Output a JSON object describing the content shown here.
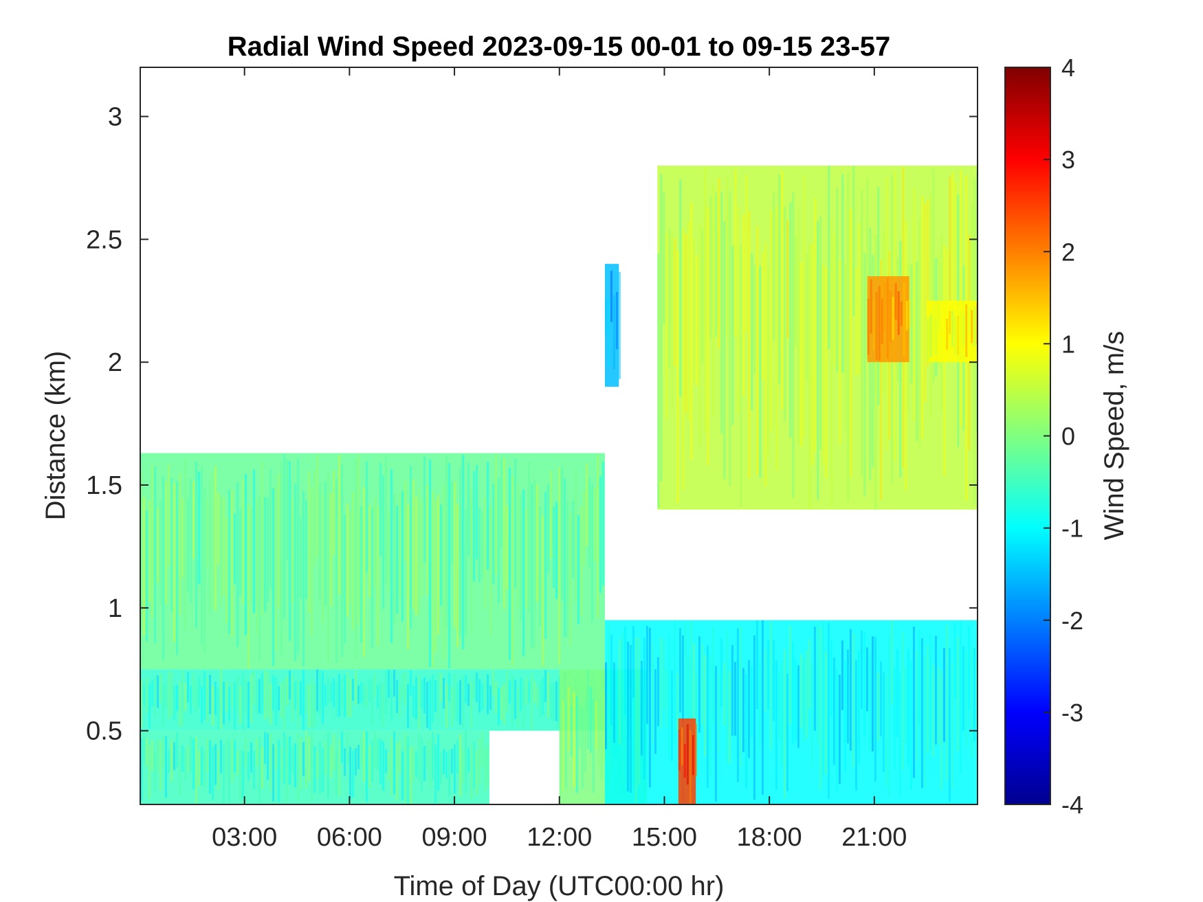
{
  "chart_data": {
    "type": "heatmap",
    "title": "Radial Wind Speed 2023-09-15 00-01 to 09-15 23-57",
    "xlabel": "Time of Day (UTC00:00 hr)",
    "ylabel": "Distance (km)",
    "colorbar_label": "Wind Speed, m/s",
    "colormap": "jet",
    "x_unit": "hours",
    "xlim": [
      0.02,
      23.95
    ],
    "ylim": [
      0.2,
      3.2
    ],
    "clim": [
      -4,
      4
    ],
    "x_ticks": [
      3,
      6,
      9,
      12,
      15,
      18,
      21
    ],
    "x_tick_labels": [
      "03:00",
      "06:00",
      "09:00",
      "12:00",
      "15:00",
      "18:00",
      "21:00"
    ],
    "y_ticks": [
      0.5,
      1,
      1.5,
      2,
      2.5,
      3
    ],
    "y_tick_labels": [
      "0.5",
      "1",
      "1.5",
      "2",
      "2.5",
      "3"
    ],
    "c_ticks": [
      -4,
      -3,
      -2,
      -1,
      0,
      1,
      2,
      3,
      4
    ],
    "c_tick_labels": [
      "-4",
      "-3",
      "-2",
      "-1",
      "0",
      "1",
      "2",
      "3",
      "4"
    ],
    "regions": [
      {
        "x_range": [
          0.02,
          13.3
        ],
        "y_range": [
          0.75,
          1.63
        ],
        "value": -0.2
      },
      {
        "x_range": [
          0.02,
          13.3
        ],
        "y_range": [
          0.5,
          0.75
        ],
        "value": -0.6
      },
      {
        "x_range": [
          0.02,
          10.0
        ],
        "y_range": [
          0.2,
          0.5
        ],
        "value": -0.5
      },
      {
        "x_range": [
          12.0,
          14.5
        ],
        "y_range": [
          0.2,
          0.75
        ],
        "value": 0.0
      },
      {
        "x_range": [
          13.3,
          23.95
        ],
        "y_range": [
          0.2,
          0.95
        ],
        "value": -1.0
      },
      {
        "x_range": [
          15.4,
          15.9
        ],
        "y_range": [
          0.2,
          0.55
        ],
        "value": 2.5
      },
      {
        "x_range": [
          13.3,
          13.7
        ],
        "y_range": [
          1.9,
          2.4
        ],
        "value": -1.5
      },
      {
        "x_range": [
          14.8,
          23.95
        ],
        "y_range": [
          1.4,
          2.8
        ],
        "value": 0.5
      },
      {
        "x_range": [
          20.8,
          22.0
        ],
        "y_range": [
          2.0,
          2.35
        ],
        "value": 1.8
      },
      {
        "x_range": [
          22.5,
          23.95
        ],
        "y_range": [
          2.0,
          2.25
        ],
        "value": 1.0
      }
    ]
  }
}
